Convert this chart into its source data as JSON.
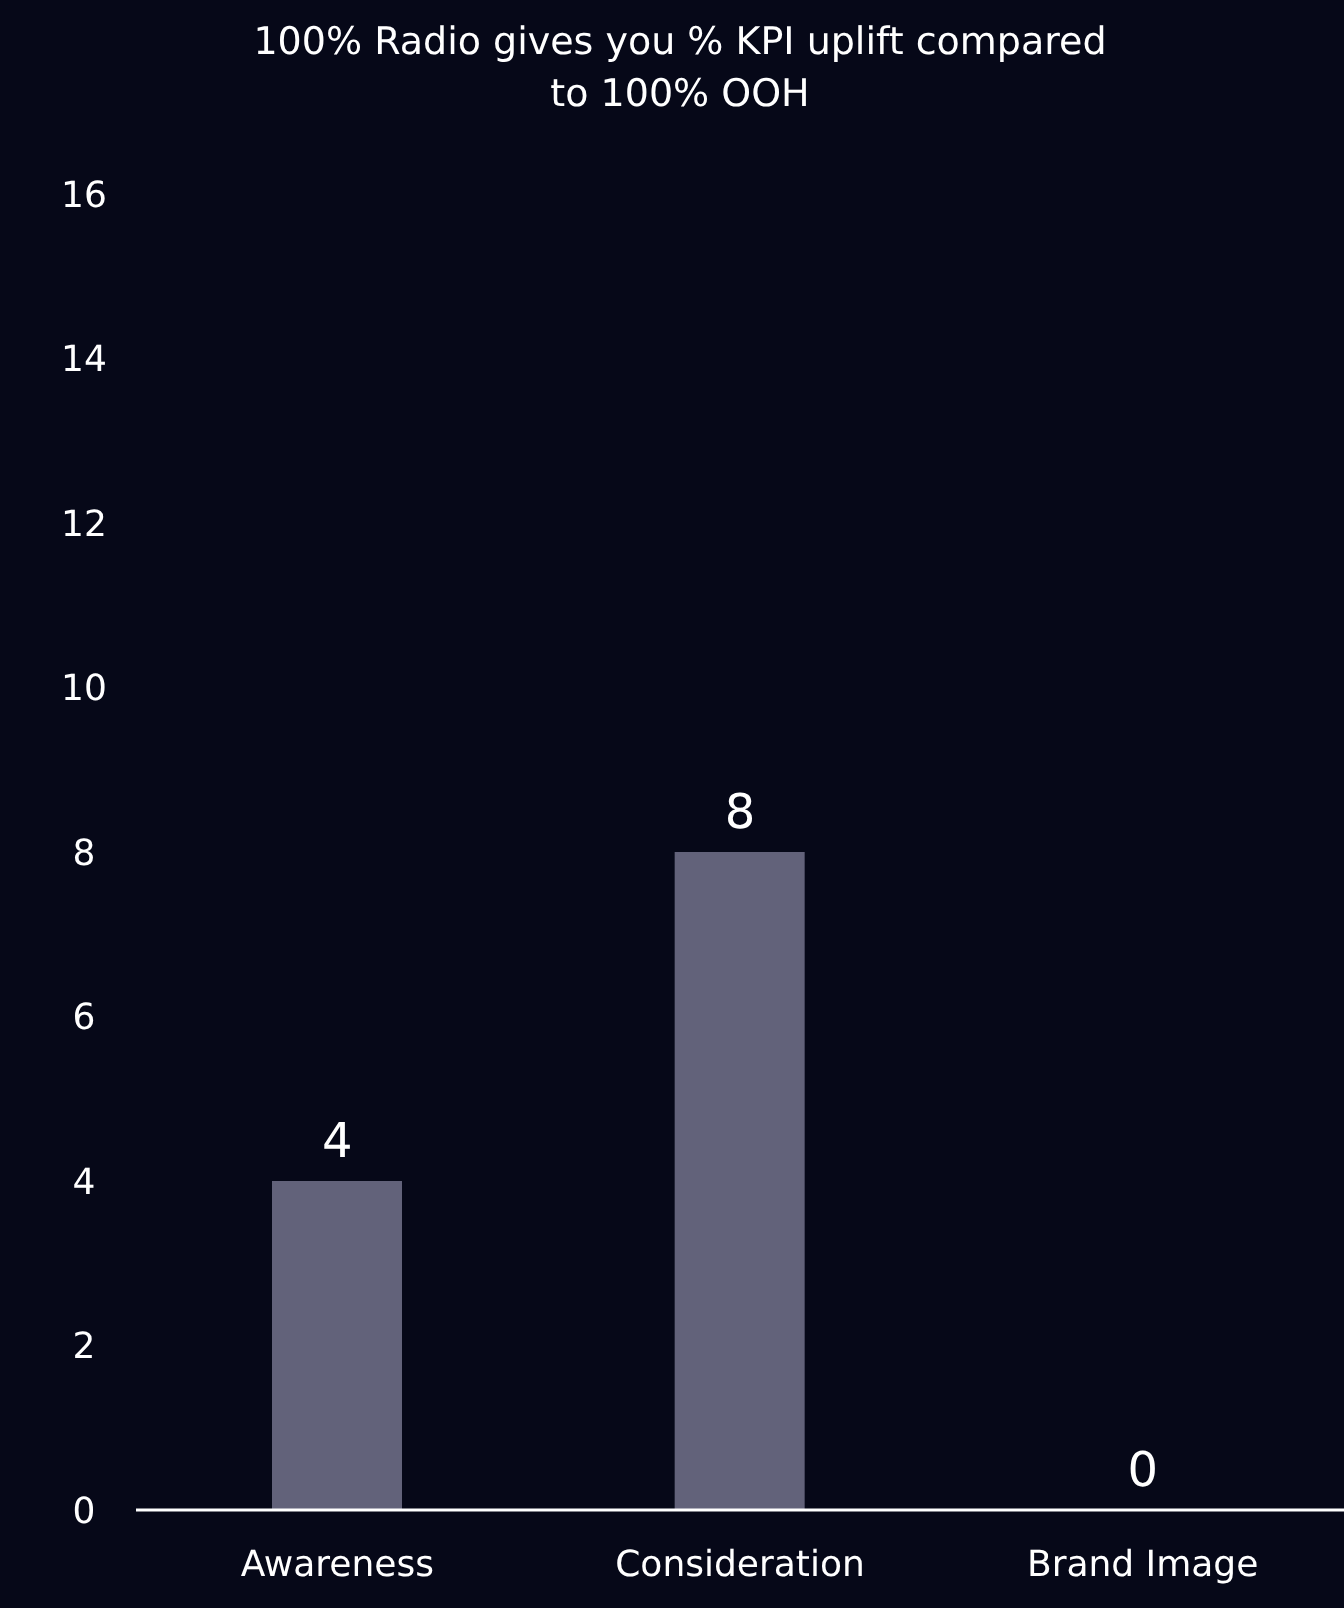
{
  "chart_data": {
    "type": "bar",
    "title": "100% Radio gives you % KPI uplift compared to 100% OOH",
    "categories": [
      "Awareness",
      "Consideration",
      "Brand Image"
    ],
    "values": [
      4,
      8,
      0
    ],
    "color": "#62627a",
    "ylim": [
      0,
      16
    ],
    "yticks": [
      0,
      2,
      4,
      6,
      8,
      10,
      12,
      14,
      16
    ],
    "grid": false,
    "legend": false,
    "data_labels": true
  }
}
